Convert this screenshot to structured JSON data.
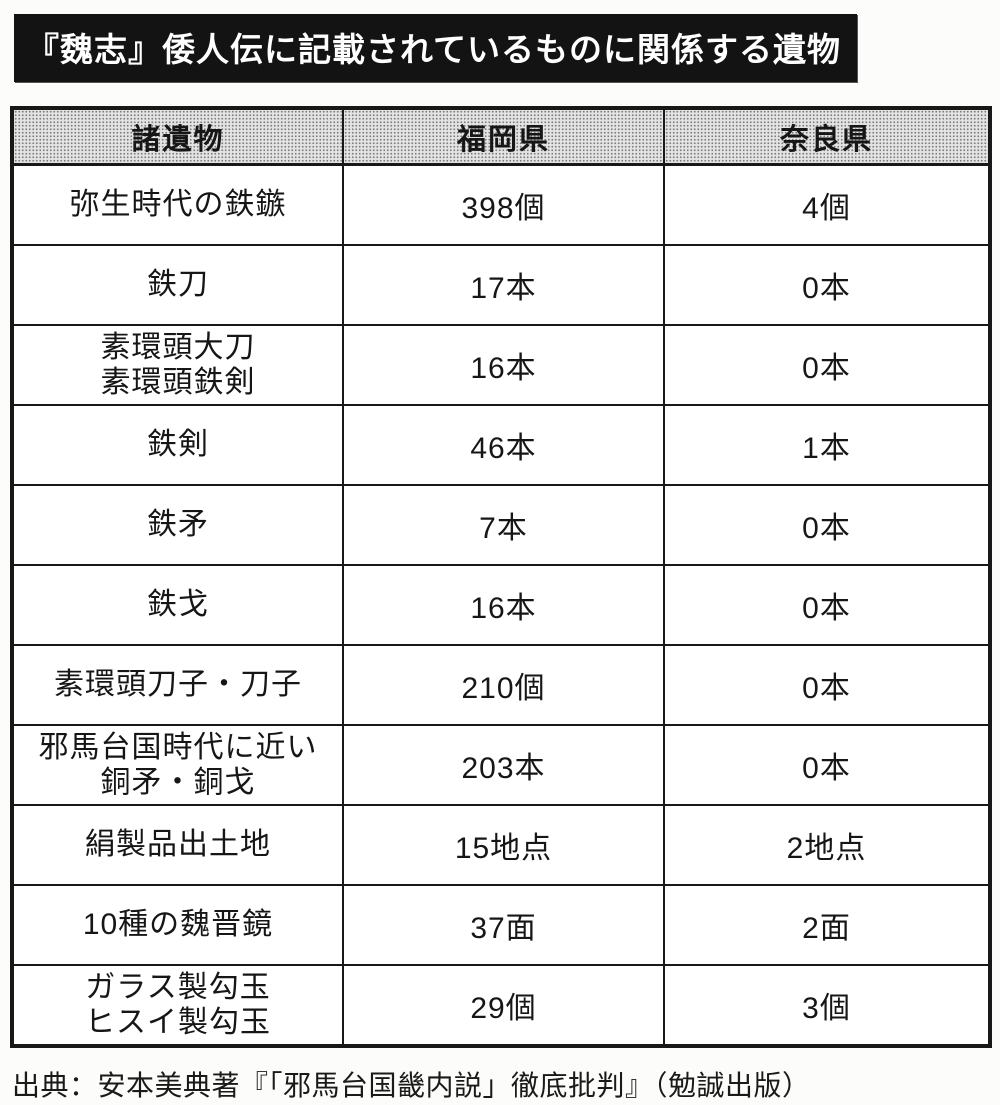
{
  "title": "『魏志』倭人伝に記載されているものに関係する遺物",
  "table": {
    "headers": {
      "artifacts": "諸遺物",
      "fukuoka": "福岡県",
      "nara": "奈良県"
    },
    "rows": [
      {
        "label": "弥生時代の鉄鏃",
        "fukuoka": "398個",
        "nara": "4個"
      },
      {
        "label": "鉄刀",
        "fukuoka": "17本",
        "nara": "0本"
      },
      {
        "label": "素環頭大刀\n素環頭鉄剣",
        "fukuoka": "16本",
        "nara": "0本"
      },
      {
        "label": "鉄剣",
        "fukuoka": "46本",
        "nara": "1本"
      },
      {
        "label": "鉄矛",
        "fukuoka": "7本",
        "nara": "0本"
      },
      {
        "label": "鉄戈",
        "fukuoka": "16本",
        "nara": "0本"
      },
      {
        "label": "素環頭刀子・刀子",
        "fukuoka": "210個",
        "nara": "0本"
      },
      {
        "label": "邪馬台国時代に近い\n銅矛・銅戈",
        "fukuoka": "203本",
        "nara": "0本"
      },
      {
        "label": "絹製品出土地",
        "fukuoka": "15地点",
        "nara": "2地点"
      },
      {
        "label": "10種の魏晋鏡",
        "fukuoka": "37面",
        "nara": "2面"
      },
      {
        "label": "ガラス製勾玉\nヒスイ製勾玉",
        "fukuoka": "29個",
        "nara": "3個"
      }
    ]
  },
  "source": "出典：安本美典著『「邪馬台国畿内説」徹底批判』（勉誠出版）",
  "colors": {
    "title_bg": "#131313",
    "title_fg": "#ffffff",
    "border": "#181818",
    "header_bg": "#c9c9c9",
    "page_bg": "#fcfcfa"
  }
}
